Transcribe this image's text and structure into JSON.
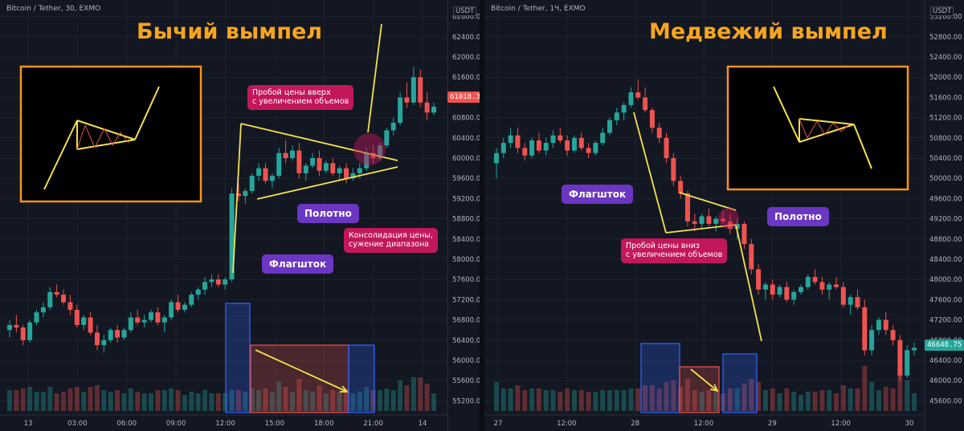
{
  "left": {
    "symbol": "Bitcoin / Tether, 30, EXMO",
    "title": "Бычий вымпел",
    "unit": "USDT",
    "last_price": "61018.30",
    "price_ticks": [
      "62800.00",
      "62400.00",
      "62000.00",
      "61600.00",
      "61200.00",
      "60800.00",
      "60400.00",
      "60000.00",
      "59600.00",
      "59200.00",
      "58800.00",
      "58400.00",
      "58000.00",
      "57600.00",
      "57200.00",
      "56800.00",
      "56400.00",
      "56000.00",
      "55600.00",
      "55200.00"
    ],
    "time_ticks": [
      "13",
      "03:00",
      "06:00",
      "09:00",
      "12:00",
      "15:00",
      "18:00",
      "21:00",
      "14"
    ],
    "callouts": {
      "breakout": "Пробой цены вверх\nс увеличением объемов",
      "pennant": "Полотно",
      "consolidation": "Консолидация цены,\nсужение диапазона",
      "flagpole": "Флагшток"
    }
  },
  "right": {
    "symbol": "Bitcoin / Tether, 1Ч, EXMO",
    "title": "Медвежий вымпел",
    "unit": "USDT",
    "last_price": "46648.75",
    "price_ticks": [
      "53200.00",
      "52800.00",
      "52400.00",
      "52000.00",
      "51600.00",
      "51200.00",
      "50800.00",
      "50400.00",
      "50000.00",
      "49600.00",
      "49200.00",
      "48800.00",
      "48400.00",
      "48000.00",
      "47600.00",
      "47200.00",
      "46800.00",
      "46400.00",
      "46000.00",
      "45600.00"
    ],
    "time_ticks": [
      "27",
      "12:00",
      "28",
      "12:00",
      "29",
      "12:00",
      "30"
    ],
    "callouts": {
      "flagpole": "Флагшток",
      "pennant": "Полотно",
      "breakout": "Пробой цены вниз\nс увеличением объемов"
    }
  },
  "colors": {
    "background": "#131722",
    "bull": "#26a69a",
    "bear": "#ef5350",
    "annotation": "#f5e14a",
    "title": "#f7a51c",
    "callout_purple": "#6b36c2",
    "callout_pink": "#c2185b"
  },
  "chart_data": [
    {
      "type": "candlestick",
      "title": "Бычий вымпел",
      "series_symbol": "Bitcoin / Tether, 30, EXMO",
      "x": [
        "13",
        "03:00",
        "06:00",
        "09:00",
        "12:00",
        "15:00",
        "18:00",
        "21:00",
        "14"
      ],
      "ylim": [
        55000,
        63000
      ],
      "ohlc": [
        [
          56600,
          56800,
          56450,
          56700
        ],
        [
          56700,
          56900,
          56550,
          56650
        ],
        [
          56650,
          56700,
          56300,
          56400
        ],
        [
          56400,
          56800,
          56350,
          56750
        ],
        [
          56750,
          57000,
          56700,
          56950
        ],
        [
          56950,
          57150,
          56850,
          57050
        ],
        [
          57050,
          57450,
          57000,
          57350
        ],
        [
          57350,
          57500,
          57250,
          57300
        ],
        [
          57300,
          57400,
          57100,
          57150
        ],
        [
          57150,
          57300,
          56900,
          57000
        ],
        [
          57000,
          57100,
          56650,
          56700
        ],
        [
          56700,
          56900,
          56600,
          56850
        ],
        [
          56850,
          56950,
          56500,
          56550
        ],
        [
          56550,
          56700,
          56200,
          56300
        ],
        [
          56300,
          56500,
          56150,
          56400
        ],
        [
          56400,
          56650,
          56350,
          56600
        ],
        [
          56600,
          56700,
          56350,
          56450
        ],
        [
          56450,
          56650,
          56400,
          56600
        ],
        [
          56600,
          56950,
          56550,
          56850
        ],
        [
          56850,
          57000,
          56700,
          56750
        ],
        [
          56750,
          56900,
          56650,
          56800
        ],
        [
          56800,
          57000,
          56750,
          56950
        ],
        [
          56950,
          57050,
          56700,
          56750
        ],
        [
          56750,
          56900,
          56550,
          56850
        ],
        [
          56850,
          57200,
          56800,
          57150
        ],
        [
          57150,
          57300,
          56950,
          57000
        ],
        [
          57000,
          57150,
          56950,
          57100
        ],
        [
          57100,
          57350,
          57050,
          57300
        ],
        [
          57300,
          57450,
          57200,
          57400
        ],
        [
          57400,
          57650,
          57300,
          57550
        ],
        [
          57550,
          57700,
          57450,
          57600
        ],
        [
          57600,
          57700,
          57450,
          57500
        ],
        [
          57500,
          57650,
          57400,
          57600
        ],
        [
          57600,
          59400,
          57550,
          59300
        ],
        [
          59300,
          59500,
          59150,
          59250
        ],
        [
          59250,
          59400,
          59100,
          59350
        ],
        [
          59350,
          59700,
          59300,
          59650
        ],
        [
          59650,
          59900,
          59550,
          59800
        ],
        [
          59800,
          59900,
          59500,
          59550
        ],
        [
          59550,
          59700,
          59400,
          59650
        ],
        [
          59650,
          60200,
          59600,
          60100
        ],
        [
          60100,
          60350,
          59900,
          60000
        ],
        [
          60000,
          60250,
          59950,
          60150
        ],
        [
          60150,
          60300,
          59600,
          59700
        ],
        [
          59700,
          59900,
          59550,
          59850
        ],
        [
          59850,
          60100,
          59800,
          60000
        ],
        [
          60000,
          60150,
          59650,
          59750
        ],
        [
          59750,
          59950,
          59700,
          59900
        ],
        [
          59900,
          60000,
          59650,
          59700
        ],
        [
          59700,
          59850,
          59550,
          59800
        ],
        [
          59800,
          59900,
          59500,
          59600
        ],
        [
          59600,
          59800,
          59550,
          59700
        ],
        [
          59700,
          59900,
          59600,
          59800
        ],
        [
          59800,
          60200,
          59750,
          60100
        ],
        [
          60100,
          60250,
          59900,
          60000
        ],
        [
          60000,
          60300,
          59950,
          60250
        ],
        [
          60250,
          60600,
          60200,
          60550
        ],
        [
          60550,
          60800,
          60450,
          60700
        ],
        [
          60700,
          61300,
          60650,
          61200
        ],
        [
          61200,
          61500,
          61000,
          61100
        ],
        [
          61100,
          61800,
          61050,
          61600
        ],
        [
          61600,
          61750,
          61000,
          61100
        ],
        [
          61100,
          61300,
          60750,
          60900
        ],
        [
          60900,
          61100,
          60850,
          61018
        ]
      ],
      "annotations": [
        "Пробой цены вверх с увеличением объемов",
        "Полотно",
        "Консолидация цены, сужение диапазона",
        "Флагшток"
      ]
    },
    {
      "type": "candlestick",
      "title": "Медвежий вымпел",
      "series_symbol": "Bitcoin / Tether, 1Ч, EXMO",
      "x": [
        "27",
        "12:00",
        "28",
        "12:00",
        "29",
        "12:00",
        "30"
      ],
      "ylim": [
        45400,
        53400
      ],
      "ohlc": [
        [
          50300,
          50600,
          50000,
          50500
        ],
        [
          50500,
          50800,
          50400,
          50700
        ],
        [
          50700,
          51000,
          50600,
          50850
        ],
        [
          50850,
          51000,
          50500,
          50600
        ],
        [
          50600,
          50700,
          50350,
          50450
        ],
        [
          50450,
          50800,
          50400,
          50750
        ],
        [
          50750,
          50900,
          50500,
          50550
        ],
        [
          50550,
          50800,
          50450,
          50700
        ],
        [
          50700,
          50950,
          50600,
          50850
        ],
        [
          50850,
          51000,
          50700,
          50750
        ],
        [
          50750,
          50850,
          50450,
          50550
        ],
        [
          50550,
          50850,
          50500,
          50800
        ],
        [
          50800,
          50900,
          50550,
          50600
        ],
        [
          50600,
          50700,
          50400,
          50500
        ],
        [
          50500,
          50750,
          50450,
          50700
        ],
        [
          50700,
          51000,
          50650,
          50900
        ],
        [
          50900,
          51200,
          50850,
          51150
        ],
        [
          51150,
          51400,
          51050,
          51300
        ],
        [
          51300,
          51500,
          51150,
          51450
        ],
        [
          51450,
          51800,
          51400,
          51700
        ],
        [
          51700,
          51950,
          51550,
          51600
        ],
        [
          51600,
          51800,
          51300,
          51350
        ],
        [
          51350,
          51400,
          50900,
          51000
        ],
        [
          51000,
          51100,
          50700,
          50800
        ],
        [
          50800,
          50900,
          50300,
          50400
        ],
        [
          50400,
          50500,
          49850,
          49950
        ],
        [
          49950,
          50050,
          49600,
          49700
        ],
        [
          49700,
          49750,
          49050,
          49150
        ],
        [
          49150,
          49300,
          48950,
          49100
        ],
        [
          49100,
          49300,
          49000,
          49250
        ],
        [
          49250,
          49400,
          49050,
          49100
        ],
        [
          49100,
          49250,
          48950,
          49200
        ],
        [
          49200,
          49350,
          49100,
          49150
        ],
        [
          49150,
          49300,
          48900,
          49000
        ],
        [
          49000,
          49200,
          48800,
          49100
        ],
        [
          49100,
          49150,
          48600,
          48700
        ],
        [
          48700,
          48800,
          48100,
          48200
        ],
        [
          48200,
          48300,
          47700,
          47800
        ],
        [
          47800,
          47950,
          47600,
          47900
        ],
        [
          47900,
          48000,
          47600,
          47700
        ],
        [
          47700,
          47900,
          47650,
          47850
        ],
        [
          47850,
          47950,
          47550,
          47600
        ],
        [
          47600,
          47800,
          47500,
          47750
        ],
        [
          47750,
          47900,
          47700,
          47850
        ],
        [
          47850,
          48100,
          47800,
          48050
        ],
        [
          48050,
          48200,
          47900,
          47950
        ],
        [
          47950,
          48050,
          47700,
          47800
        ],
        [
          47800,
          47950,
          47600,
          47900
        ],
        [
          47900,
          48050,
          47800,
          47850
        ],
        [
          47850,
          47950,
          47450,
          47500
        ],
        [
          47500,
          47700,
          47300,
          47650
        ],
        [
          47650,
          47800,
          47400,
          47450
        ],
        [
          47450,
          47600,
          46500,
          46600
        ],
        [
          46600,
          47100,
          46500,
          47000
        ],
        [
          47000,
          47250,
          46900,
          47200
        ],
        [
          47200,
          47350,
          46900,
          47000
        ],
        [
          47000,
          47100,
          46700,
          46800
        ],
        [
          46800,
          46900,
          46000,
          46100
        ],
        [
          46100,
          46700,
          46050,
          46600
        ],
        [
          46600,
          46750,
          46500,
          46649
        ]
      ],
      "annotations": [
        "Флагшток",
        "Полотно",
        "Пробой цены вниз с увеличением объемов"
      ]
    }
  ]
}
